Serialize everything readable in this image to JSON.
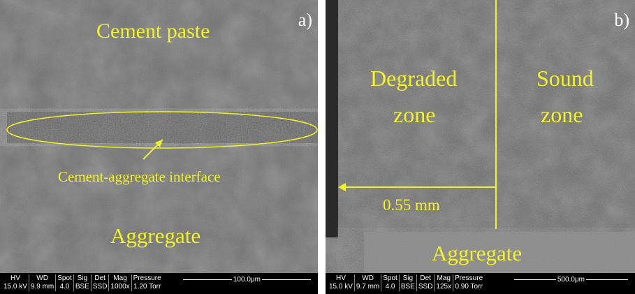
{
  "panel_a": {
    "letter": "a)",
    "labels": {
      "cement_paste": "Cement paste",
      "interface": "Cement-aggregate interface",
      "aggregate": "Aggregate"
    },
    "databar": {
      "headers": [
        "HV",
        "WD",
        "Spot",
        "Sig",
        "Det",
        "Mag",
        "Pressure"
      ],
      "values": [
        "15.0 kV",
        "9.9 mm",
        "4.0",
        "BSE",
        "SSD",
        "1000x",
        "1.20  Torr"
      ],
      "scale_label": "100.0μm"
    }
  },
  "panel_b": {
    "letter": "b)",
    "labels": {
      "degraded_1": "Degraded",
      "degraded_2": "zone",
      "sound_1": "Sound",
      "sound_2": "zone",
      "distance": "0.55 mm",
      "aggregate": "Aggregate"
    },
    "databar": {
      "headers": [
        "HV",
        "WD",
        "Spot",
        "Sig",
        "Det",
        "Mag",
        "Pressure"
      ],
      "values": [
        "15.0 kV",
        "9.7 mm",
        "4.0",
        "BSE",
        "SSD",
        "125x",
        "0.90  Torr"
      ],
      "scale_label": "500.0μm"
    }
  },
  "colors": {
    "annotation": "#f2f227",
    "background_gray": "#6e6e6e"
  }
}
